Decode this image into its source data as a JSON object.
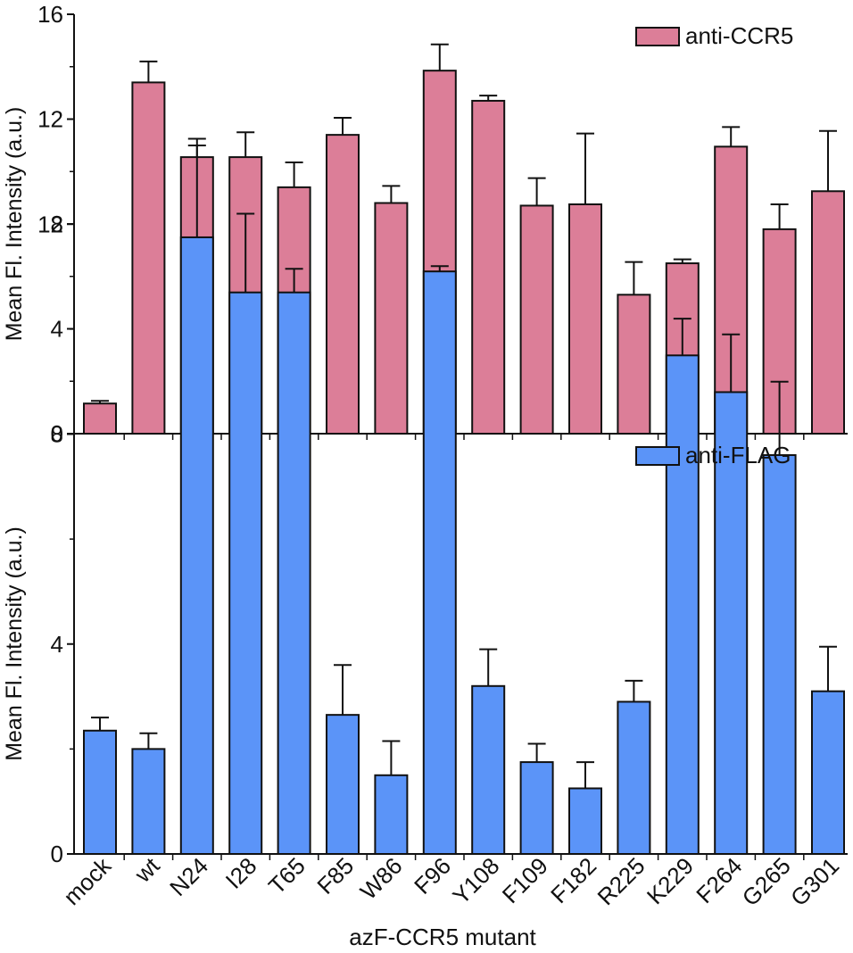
{
  "chart_data": [
    {
      "type": "bar",
      "title": "",
      "xlabel": "azF-CCR5 mutant",
      "ylabel": "Mean Fl. Intensity (a.u.)",
      "ylim": [
        0,
        16
      ],
      "yticks": [
        0,
        4,
        8,
        12,
        16
      ],
      "legend": {
        "label": "anti-CCR5",
        "position": "top-right"
      },
      "color": "#dc7e98",
      "categories": [
        "mock",
        "wt",
        "N24",
        "I28",
        "T65",
        "F85",
        "W86",
        "F96",
        "Y108",
        "F109",
        "F182",
        "R225",
        "K229",
        "F264",
        "G265",
        "G301"
      ],
      "values": [
        1.15,
        13.4,
        10.55,
        10.55,
        9.4,
        11.4,
        8.8,
        13.85,
        12.7,
        8.7,
        8.75,
        5.3,
        6.5,
        10.95,
        7.8,
        9.25
      ],
      "errors": [
        0.1,
        0.8,
        0.7,
        0.95,
        0.95,
        0.65,
        0.65,
        1.0,
        0.2,
        1.05,
        2.7,
        1.25,
        0.15,
        0.75,
        0.95,
        2.3
      ]
    },
    {
      "type": "bar",
      "title": "",
      "xlabel": "azF-CCR5 mutant",
      "ylabel": "Mean Fl. Intensity (a.u.)",
      "ylim": [
        0,
        16
      ],
      "yticks": [
        0,
        4,
        8,
        12
      ],
      "legend": {
        "label": "anti-FLAG",
        "position": "top-right"
      },
      "color": "#5b94f8",
      "categories": [
        "mock",
        "wt",
        "N24",
        "I28",
        "T65",
        "F85",
        "W86",
        "F96",
        "Y108",
        "F109",
        "F182",
        "R225",
        "K229",
        "F264",
        "G265",
        "G301"
      ],
      "values": [
        2.35,
        2.0,
        11.75,
        10.7,
        10.7,
        2.65,
        1.5,
        11.1,
        3.2,
        1.75,
        1.25,
        2.9,
        9.5,
        8.8,
        7.6,
        3.1
      ],
      "errors": [
        0.25,
        0.3,
        1.75,
        1.5,
        0.45,
        0.95,
        0.65,
        0.1,
        0.7,
        0.35,
        0.5,
        0.4,
        0.7,
        1.1,
        1.4,
        0.85
      ]
    }
  ]
}
